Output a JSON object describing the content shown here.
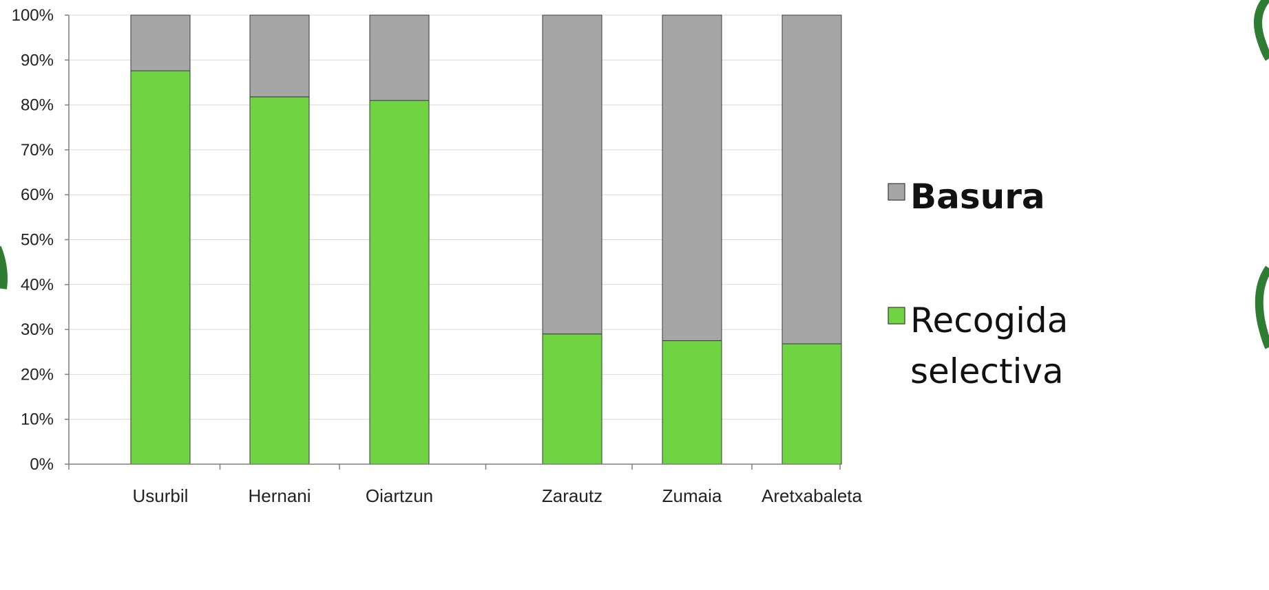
{
  "chart_data": {
    "type": "bar",
    "stacked": true,
    "percent": true,
    "categories": [
      "Usurbil",
      "Hernani",
      "Oiartzun",
      "Zarautz",
      "Zumaia",
      "Aretxabaleta"
    ],
    "series": [
      {
        "name": "Recogida selectiva",
        "color": "#70d341",
        "values": [
          87.6,
          81.8,
          81.0,
          29.0,
          27.5,
          26.8
        ]
      },
      {
        "name": "Basura",
        "color": "#a6a6a6",
        "values": [
          12.4,
          18.2,
          19.0,
          71.0,
          72.5,
          73.2
        ]
      }
    ],
    "y_ticks": [
      "0%",
      "10%",
      "20%",
      "30%",
      "40%",
      "50%",
      "60%",
      "70%",
      "80%",
      "90%",
      "100%"
    ],
    "ylim": [
      0,
      100
    ],
    "grid": true,
    "legend": {
      "placement": "right",
      "items": [
        {
          "line1": "Basura",
          "line2": "",
          "color": "#a6a6a6",
          "bold": true
        },
        {
          "line1": "Recogida",
          "line2": "selectiva",
          "color": "#70d341",
          "bold": false
        }
      ]
    }
  }
}
